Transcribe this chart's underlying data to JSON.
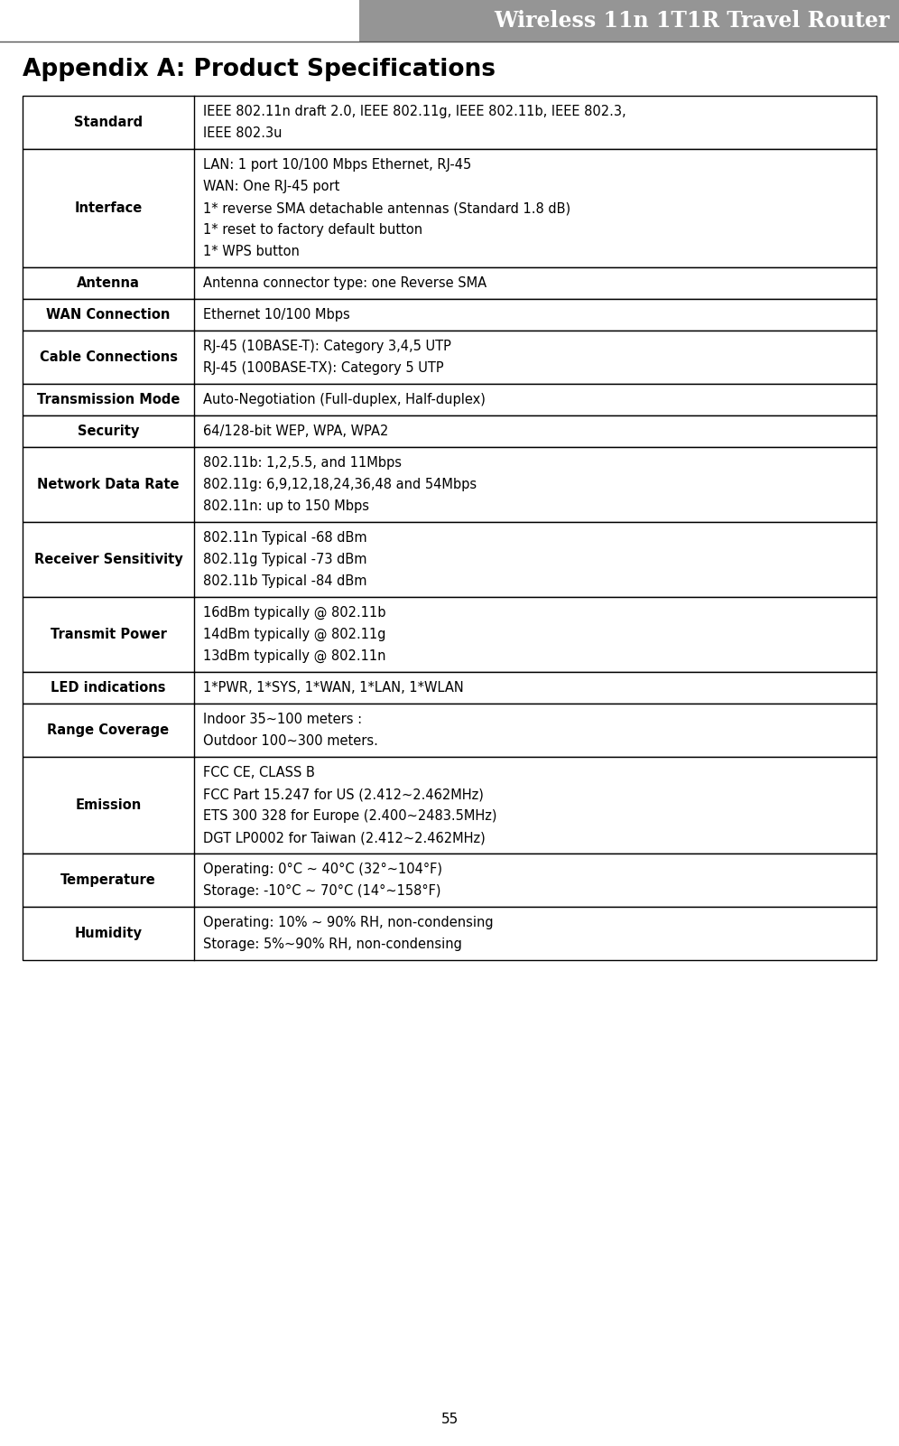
{
  "page_title": "Wireless 11n 1T1R Travel Router",
  "section_title": "Appendix A: Product Specifications",
  "page_number": "55",
  "header_bg": "#959595",
  "header_text_color": "#ffffff",
  "rows": [
    {
      "label": "Standard",
      "lines": [
        "IEEE 802.11n draft 2.0, IEEE 802.11g, IEEE 802.11b, IEEE 802.3,",
        "IEEE 802.3u"
      ]
    },
    {
      "label": "Interface",
      "lines": [
        "LAN: 1 port 10/100 Mbps Ethernet, RJ-45",
        "WAN: One RJ-45 port",
        "1* reverse SMA detachable antennas (Standard 1.8 dB)",
        "1* reset to factory default button",
        "1* WPS button"
      ]
    },
    {
      "label": "Antenna",
      "lines": [
        "Antenna connector type: one Reverse SMA"
      ]
    },
    {
      "label": "WAN Connection",
      "lines": [
        "Ethernet 10/100 Mbps"
      ]
    },
    {
      "label": "Cable Connections",
      "lines": [
        "RJ-45 (10BASE-T): Category 3,4,5 UTP",
        "RJ-45 (100BASE-TX): Category 5 UTP"
      ]
    },
    {
      "label": "Transmission Mode",
      "lines": [
        "Auto-Negotiation (Full-duplex, Half-duplex)"
      ]
    },
    {
      "label": "Security",
      "lines": [
        "64/128-bit WEP, WPA, WPA2"
      ]
    },
    {
      "label": "Network Data Rate",
      "lines": [
        "802.11b: 1,2,5.5, and 11Mbps",
        "802.11g: 6,9,12,18,24,36,48 and 54Mbps",
        "802.11n: up to 150 Mbps"
      ]
    },
    {
      "label": "Receiver Sensitivity",
      "lines": [
        "802.11n Typical -68 dBm",
        "802.11g Typical -73 dBm",
        "802.11b Typical -84 dBm"
      ]
    },
    {
      "label": "Transmit Power",
      "lines": [
        "16dBm typically @ 802.11b",
        "14dBm typically @ 802.11g",
        "13dBm typically @ 802.11n"
      ]
    },
    {
      "label": "LED indications",
      "lines": [
        "1*PWR, 1*SYS, 1*WAN, 1*LAN, 1*WLAN"
      ]
    },
    {
      "label": "Range Coverage",
      "lines": [
        "Indoor 35~100 meters :",
        "Outdoor 100~300 meters."
      ]
    },
    {
      "label": "Emission",
      "lines": [
        "FCC CE, CLASS B",
        "FCC Part 15.247 for US (2.412~2.462MHz)",
        "ETS 300 328 for Europe (2.400~2483.5MHz)",
        "DGT LP0002 for Taiwan (2.412~2.462MHz)"
      ]
    },
    {
      "label": "Temperature",
      "lines": [
        "Operating: 0°C ~ 40°C (32°~104°F)",
        "Storage: -10°C ~ 70°C (14°~158°F)"
      ]
    },
    {
      "label": "Humidity",
      "lines": [
        "Operating: 10% ~ 90% RH, non-condensing",
        "Storage: 5%~90% RH, non-condensing"
      ]
    }
  ]
}
